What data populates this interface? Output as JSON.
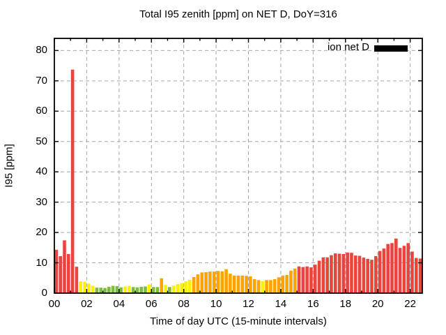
{
  "title": "Total I95 zenith [ppm] on NET D, DoY=316",
  "legend": {
    "label": "ion net D",
    "swatch_color": "#000000"
  },
  "axes": {
    "x_label": "Time of day UTC (15-minute intervals)",
    "y_label": "I95 [ppm]",
    "x_tick_labels": [
      "00",
      "02",
      "04",
      "06",
      "08",
      "10",
      "12",
      "14",
      "16",
      "18",
      "20",
      "22"
    ],
    "x_tick_hours": [
      0,
      2,
      4,
      6,
      8,
      10,
      12,
      14,
      16,
      18,
      20,
      22
    ],
    "y_ticks": [
      0,
      10,
      20,
      30,
      40,
      50,
      60,
      70,
      80
    ],
    "x_range_hours": [
      0,
      22.75
    ],
    "y_range": [
      0,
      84
    ],
    "grid": true
  },
  "colors": {
    "red": "#e8453f",
    "orange": "#ffa300",
    "yellow": "#fff000",
    "green": "#7dbb3c",
    "grid": "#a6a6a6",
    "axis": "#000000"
  },
  "chart_data": {
    "type": "bar",
    "title": "Total I95 zenith [ppm] on NET D, DoY=316",
    "xlabel": "Time of day UTC (15-minute intervals)",
    "ylabel": "I95 [ppm]",
    "ylim": [
      0,
      84
    ],
    "xlim_hours": [
      0,
      22.75
    ],
    "legend_entries": [
      "ion net D"
    ],
    "legend_position": "top-right-inside",
    "grid": "dashed",
    "bar_interval_minutes": 15,
    "bars_format": [
      "time_utc",
      "i95_ppm",
      "color"
    ],
    "bars": [
      [
        "00:00",
        14.3,
        "red"
      ],
      [
        "00:15",
        12.2,
        "red"
      ],
      [
        "00:30",
        17.4,
        "red"
      ],
      [
        "00:45",
        12.9,
        "red"
      ],
      [
        "01:00",
        73.7,
        "red"
      ],
      [
        "01:15",
        8.7,
        "red"
      ],
      [
        "01:30",
        3.9,
        "yellow"
      ],
      [
        "01:45",
        3.8,
        "yellow"
      ],
      [
        "02:00",
        3.1,
        "yellow"
      ],
      [
        "02:15",
        2.4,
        "yellow"
      ],
      [
        "02:30",
        1.8,
        "green"
      ],
      [
        "02:45",
        1.8,
        "green"
      ],
      [
        "03:00",
        1.7,
        "green"
      ],
      [
        "03:15",
        2.1,
        "green"
      ],
      [
        "03:30",
        2.4,
        "green"
      ],
      [
        "03:45",
        2.3,
        "green"
      ],
      [
        "04:00",
        1.9,
        "green"
      ],
      [
        "04:15",
        2.2,
        "yellow"
      ],
      [
        "04:30",
        2.4,
        "yellow"
      ],
      [
        "04:45",
        2.0,
        "green"
      ],
      [
        "05:00",
        1.9,
        "green"
      ],
      [
        "05:15",
        2.1,
        "green"
      ],
      [
        "05:30",
        2.2,
        "green"
      ],
      [
        "05:45",
        2.9,
        "yellow"
      ],
      [
        "06:00",
        2.0,
        "green"
      ],
      [
        "06:15",
        2.0,
        "green"
      ],
      [
        "06:30",
        4.9,
        "orange"
      ],
      [
        "06:45",
        2.7,
        "yellow"
      ],
      [
        "07:00",
        2.0,
        "green"
      ],
      [
        "07:15",
        2.5,
        "yellow"
      ],
      [
        "07:30",
        3.0,
        "yellow"
      ],
      [
        "07:45",
        3.3,
        "yellow"
      ],
      [
        "08:00",
        3.9,
        "yellow"
      ],
      [
        "08:15",
        4.4,
        "yellow"
      ],
      [
        "08:30",
        5.3,
        "orange"
      ],
      [
        "08:45",
        6.2,
        "orange"
      ],
      [
        "09:00",
        6.8,
        "orange"
      ],
      [
        "09:15",
        6.9,
        "orange"
      ],
      [
        "09:30",
        7.1,
        "orange"
      ],
      [
        "09:45",
        7.1,
        "orange"
      ],
      [
        "10:00",
        7.3,
        "orange"
      ],
      [
        "10:15",
        7.2,
        "orange"
      ],
      [
        "10:30",
        7.9,
        "orange"
      ],
      [
        "10:45",
        6.4,
        "orange"
      ],
      [
        "11:00",
        5.8,
        "orange"
      ],
      [
        "11:15",
        5.8,
        "orange"
      ],
      [
        "11:30",
        5.8,
        "orange"
      ],
      [
        "11:45",
        5.7,
        "orange"
      ],
      [
        "12:00",
        5.5,
        "orange"
      ],
      [
        "12:15",
        4.6,
        "orange"
      ],
      [
        "12:30",
        4.3,
        "orange"
      ],
      [
        "12:45",
        4.0,
        "yellow"
      ],
      [
        "13:00",
        4.3,
        "orange"
      ],
      [
        "13:15",
        4.3,
        "orange"
      ],
      [
        "13:30",
        4.6,
        "orange"
      ],
      [
        "13:45",
        5.2,
        "orange"
      ],
      [
        "14:00",
        5.8,
        "orange"
      ],
      [
        "14:15",
        6.0,
        "orange"
      ],
      [
        "14:30",
        7.4,
        "orange"
      ],
      [
        "14:45",
        8.1,
        "orange"
      ],
      [
        "15:00",
        8.8,
        "red"
      ],
      [
        "15:15",
        8.6,
        "red"
      ],
      [
        "15:30",
        8.8,
        "red"
      ],
      [
        "15:45",
        8.5,
        "red"
      ],
      [
        "16:00",
        9.4,
        "red"
      ],
      [
        "16:15",
        10.7,
        "red"
      ],
      [
        "16:30",
        11.8,
        "red"
      ],
      [
        "16:45",
        11.8,
        "red"
      ],
      [
        "17:00",
        12.5,
        "red"
      ],
      [
        "17:15",
        13.1,
        "red"
      ],
      [
        "17:30",
        13.0,
        "red"
      ],
      [
        "17:45",
        12.9,
        "red"
      ],
      [
        "18:00",
        13.4,
        "red"
      ],
      [
        "18:15",
        13.3,
        "red"
      ],
      [
        "18:30",
        12.4,
        "red"
      ],
      [
        "18:45",
        12.3,
        "red"
      ],
      [
        "19:00",
        11.7,
        "red"
      ],
      [
        "19:15",
        11.3,
        "red"
      ],
      [
        "19:30",
        11.0,
        "red"
      ],
      [
        "19:45",
        12.2,
        "red"
      ],
      [
        "20:00",
        13.9,
        "red"
      ],
      [
        "20:15",
        14.7,
        "red"
      ],
      [
        "20:30",
        16.2,
        "red"
      ],
      [
        "20:45",
        16.5,
        "red"
      ],
      [
        "21:00",
        18.0,
        "red"
      ],
      [
        "21:15",
        14.9,
        "red"
      ],
      [
        "21:30",
        15.6,
        "red"
      ],
      [
        "21:45",
        16.5,
        "red"
      ],
      [
        "22:00",
        13.7,
        "red"
      ],
      [
        "22:15",
        11.6,
        "red"
      ],
      [
        "22:30",
        11.4,
        "red"
      ]
    ]
  }
}
